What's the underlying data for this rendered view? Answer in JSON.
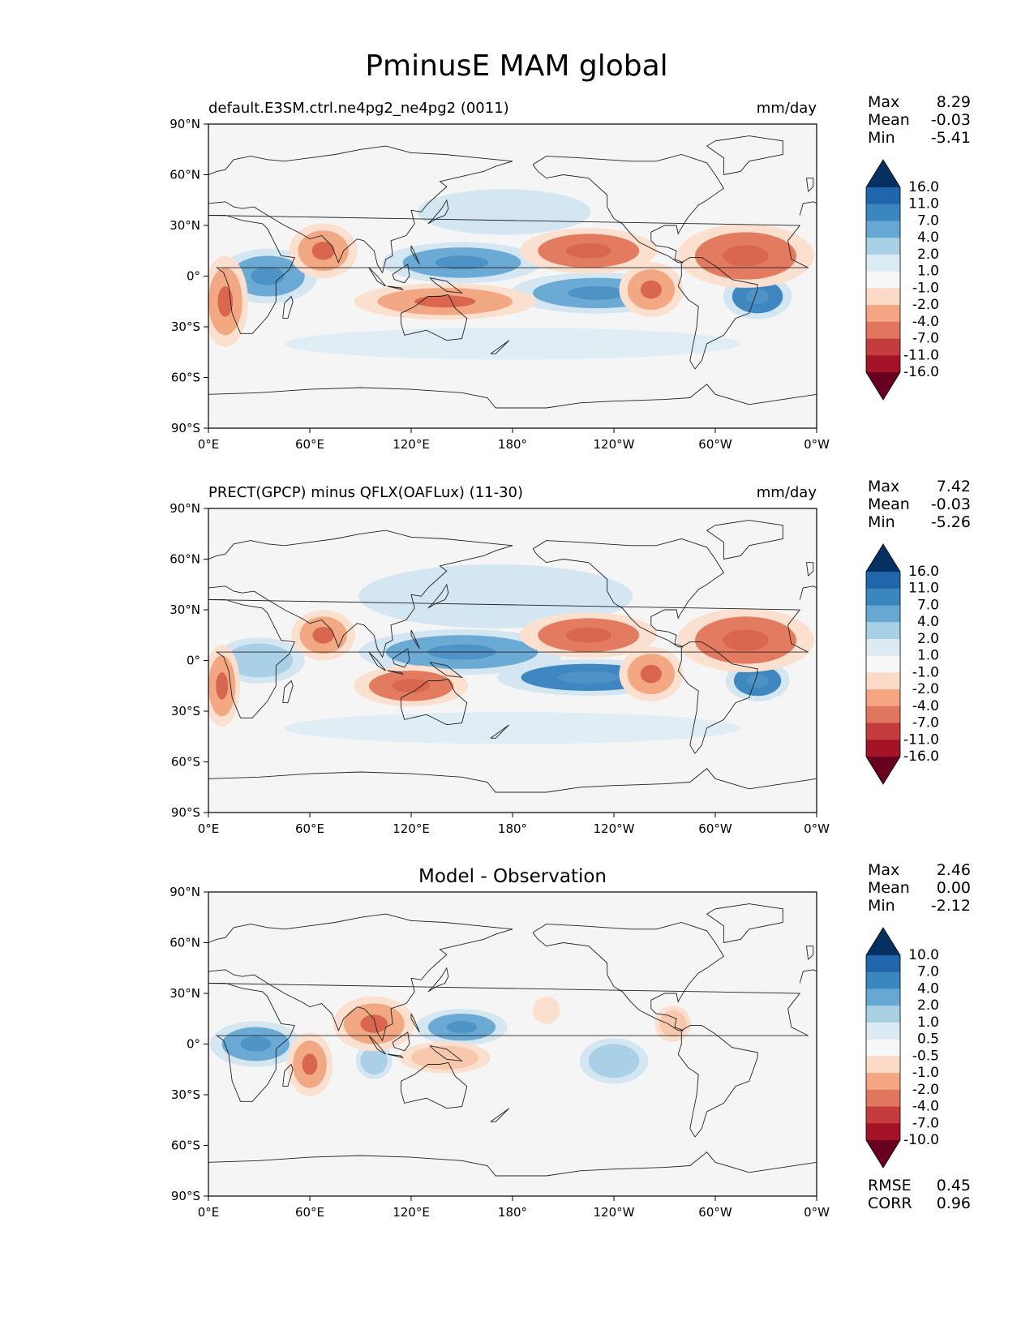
{
  "title": "PminusE MAM global",
  "colors": {
    "land_line": "#222222",
    "ocean_bg": "#f5f5f5",
    "frame": "#000000"
  },
  "chart_data": [
    {
      "type": "heatmap",
      "name": "model",
      "title_left": "default.E3SM.ctrl.ne4pg2_ne4pg2 (0011)",
      "title_center": "",
      "units": "mm/day",
      "stats": [
        {
          "label": "Max",
          "value": "8.29"
        },
        {
          "label": "Mean",
          "value": "-0.03"
        },
        {
          "label": "Min",
          "value": "-5.41"
        }
      ],
      "extra_stats": [],
      "colorbar_labels": [
        "16.0",
        "11.0",
        "7.0",
        "4.0",
        "2.0",
        "1.0",
        "-1.0",
        "-2.0",
        "-4.0",
        "-7.0",
        "-11.0",
        "-16.0"
      ],
      "x_ticks": [
        "0°E",
        "60°E",
        "120°E",
        "180°",
        "120°W",
        "60°W",
        "0°W"
      ],
      "y_ticks": [
        "90°N",
        "60°N",
        "30°N",
        "0°",
        "30°S",
        "60°S",
        "90°S"
      ],
      "xlim": [
        0,
        360
      ],
      "ylim": [
        -90,
        90
      ],
      "blobs": [
        {
          "lon": 35,
          "lat": 0,
          "rx": 22,
          "ry": 12,
          "level": 3
        },
        {
          "lon": 150,
          "lat": 8,
          "rx": 35,
          "ry": 9,
          "level": 3
        },
        {
          "lon": 230,
          "lat": -10,
          "rx": 38,
          "ry": 9,
          "level": 3
        },
        {
          "lon": 325,
          "lat": -12,
          "rx": 15,
          "ry": 10,
          "level": 4
        },
        {
          "lon": 175,
          "lat": 38,
          "rx": 38,
          "ry": 10,
          "level": 1
        },
        {
          "lon": 180,
          "lat": -40,
          "rx": 100,
          "ry": 7,
          "level": 0
        },
        {
          "lon": 68,
          "lat": 15,
          "rx": 15,
          "ry": 12,
          "level": -3
        },
        {
          "lon": 10,
          "lat": -15,
          "rx": 10,
          "ry": 20,
          "level": -3
        },
        {
          "lon": 225,
          "lat": 15,
          "rx": 30,
          "ry": 10,
          "level": -4
        },
        {
          "lon": 318,
          "lat": 12,
          "rx": 30,
          "ry": 14,
          "level": -4
        },
        {
          "lon": 140,
          "lat": -15,
          "rx": 40,
          "ry": 8,
          "level": -3
        },
        {
          "lon": 262,
          "lat": -8,
          "rx": 14,
          "ry": 12,
          "level": -3
        }
      ]
    },
    {
      "type": "heatmap",
      "name": "observation",
      "title_left": "PRECT(GPCP) minus QFLX(OAFLux) (11-30)",
      "title_center": "",
      "units": "mm/day",
      "stats": [
        {
          "label": "Max",
          "value": "7.42"
        },
        {
          "label": "Mean",
          "value": "-0.03"
        },
        {
          "label": "Min",
          "value": "-5.26"
        }
      ],
      "extra_stats": [],
      "colorbar_labels": [
        "16.0",
        "11.0",
        "7.0",
        "4.0",
        "2.0",
        "1.0",
        "-1.0",
        "-2.0",
        "-4.0",
        "-7.0",
        "-11.0",
        "-16.0"
      ],
      "x_ticks": [
        "0°E",
        "60°E",
        "120°E",
        "180°",
        "120°W",
        "60°W",
        "0°W"
      ],
      "y_ticks": [
        "90°N",
        "60°N",
        "30°N",
        "0°",
        "30°S",
        "60°S",
        "90°S"
      ],
      "xlim": [
        0,
        360
      ],
      "ylim": [
        -90,
        90
      ],
      "blobs": [
        {
          "lon": 30,
          "lat": 0,
          "rx": 20,
          "ry": 10,
          "level": 2
        },
        {
          "lon": 150,
          "lat": 5,
          "rx": 45,
          "ry": 10,
          "level": 3
        },
        {
          "lon": 225,
          "lat": -10,
          "rx": 40,
          "ry": 8,
          "level": 4
        },
        {
          "lon": 325,
          "lat": -12,
          "rx": 14,
          "ry": 9,
          "level": 4
        },
        {
          "lon": 170,
          "lat": 38,
          "rx": 60,
          "ry": 14,
          "level": 1
        },
        {
          "lon": 180,
          "lat": -40,
          "rx": 100,
          "ry": 7,
          "level": 0
        },
        {
          "lon": 68,
          "lat": 15,
          "rx": 14,
          "ry": 11,
          "level": -3
        },
        {
          "lon": 8,
          "lat": -15,
          "rx": 8,
          "ry": 18,
          "level": -3
        },
        {
          "lon": 225,
          "lat": 15,
          "rx": 30,
          "ry": 10,
          "level": -4
        },
        {
          "lon": 318,
          "lat": 12,
          "rx": 30,
          "ry": 14,
          "level": -4
        },
        {
          "lon": 120,
          "lat": -15,
          "rx": 25,
          "ry": 9,
          "level": -4
        },
        {
          "lon": 262,
          "lat": -8,
          "rx": 14,
          "ry": 12,
          "level": -3
        }
      ]
    },
    {
      "type": "heatmap",
      "name": "difference",
      "title_left": "",
      "title_center": "Model - Observation",
      "units": "",
      "stats": [
        {
          "label": "Max",
          "value": "2.46"
        },
        {
          "label": "Mean",
          "value": "0.00"
        },
        {
          "label": "Min",
          "value": "-2.12"
        }
      ],
      "extra_stats": [
        {
          "label": "RMSE",
          "value": "0.45"
        },
        {
          "label": "CORR",
          "value": "0.96"
        }
      ],
      "colorbar_labels": [
        "10.0",
        "7.0",
        "4.0",
        "2.0",
        "1.0",
        "0.5",
        "-0.5",
        "-1.0",
        "-2.0",
        "-4.0",
        "-7.0",
        "-10.0"
      ],
      "x_ticks": [
        "0°E",
        "60°E",
        "120°E",
        "180°",
        "120°W",
        "60°W",
        "0°W"
      ],
      "y_ticks": [
        "90°N",
        "60°N",
        "30°N",
        "0°",
        "30°S",
        "60°S",
        "90°S"
      ],
      "xlim": [
        0,
        360
      ],
      "ylim": [
        -90,
        90
      ],
      "blobs": [
        {
          "lon": 28,
          "lat": 0,
          "rx": 20,
          "ry": 10,
          "level": 3
        },
        {
          "lon": 150,
          "lat": 10,
          "rx": 20,
          "ry": 8,
          "level": 3
        },
        {
          "lon": 240,
          "lat": -10,
          "rx": 15,
          "ry": 10,
          "level": 2
        },
        {
          "lon": 98,
          "lat": -10,
          "rx": 8,
          "ry": 8,
          "level": 2
        },
        {
          "lon": 60,
          "lat": -12,
          "rx": 10,
          "ry": 14,
          "level": -3
        },
        {
          "lon": 98,
          "lat": 12,
          "rx": 18,
          "ry": 12,
          "level": -3
        },
        {
          "lon": 140,
          "lat": -8,
          "rx": 20,
          "ry": 7,
          "level": -2
        },
        {
          "lon": 275,
          "lat": 12,
          "rx": 8,
          "ry": 8,
          "level": -2
        },
        {
          "lon": 200,
          "lat": 20,
          "rx": 6,
          "ry": 6,
          "level": -1
        }
      ]
    }
  ]
}
